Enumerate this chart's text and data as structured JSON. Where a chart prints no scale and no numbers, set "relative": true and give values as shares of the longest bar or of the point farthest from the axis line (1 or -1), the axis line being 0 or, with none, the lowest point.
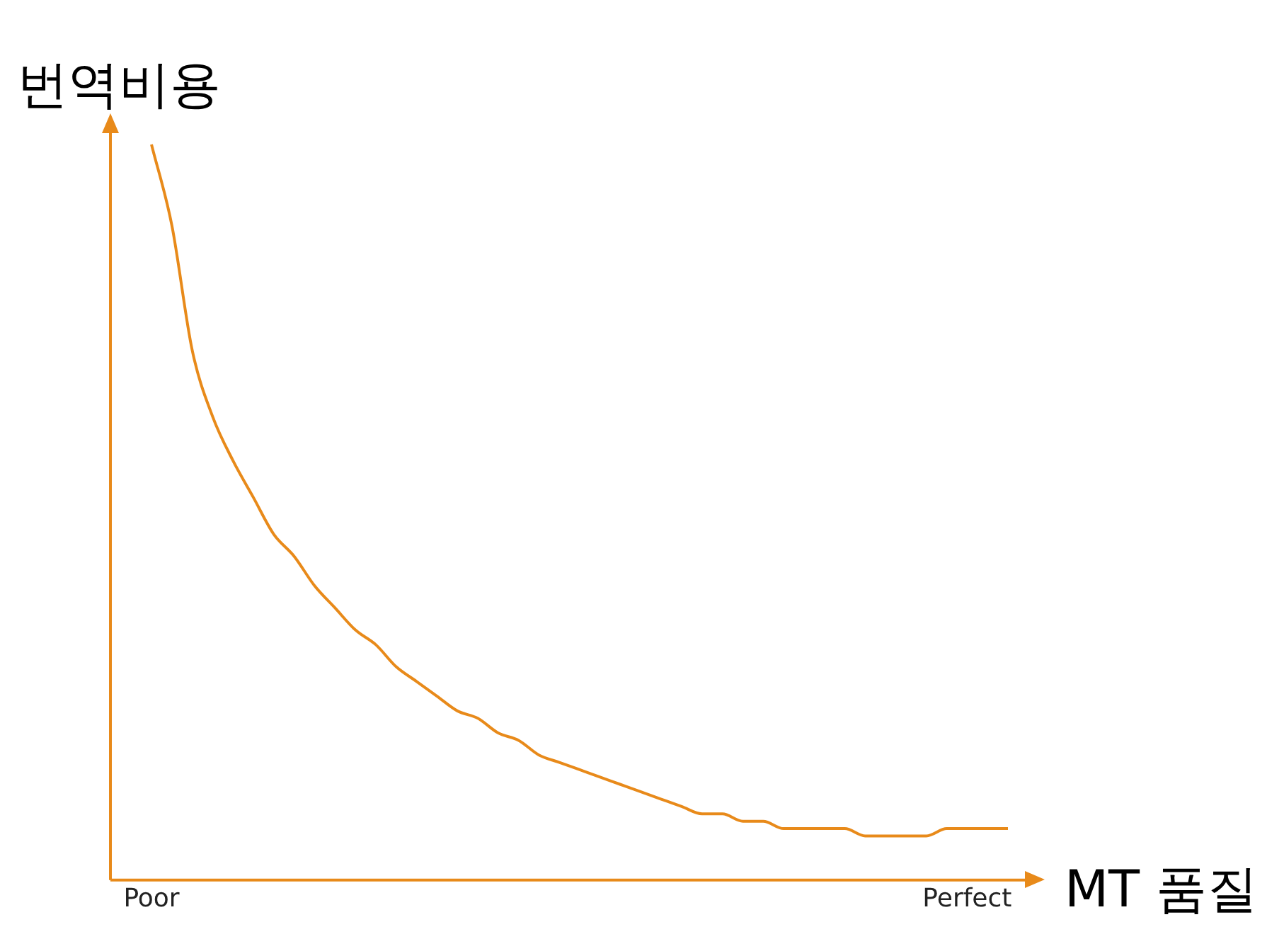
{
  "chart_data": {
    "type": "line",
    "relative": true,
    "xlabel": "MT 품질",
    "ylabel": "번역비용",
    "categories": [
      "Poor",
      null,
      null,
      null,
      null,
      null,
      null,
      null,
      null,
      null,
      null,
      null,
      null,
      null,
      null,
      null,
      null,
      null,
      null,
      null,
      null,
      null,
      null,
      null,
      null,
      null,
      null,
      null,
      null,
      null,
      null,
      null,
      null,
      null,
      null,
      null,
      null,
      null,
      null,
      null,
      "Perfect",
      null,
      null
    ],
    "series": [
      {
        "color": "#e88a1a",
        "values": [
          1.0,
          0.89,
          0.72,
          0.63,
          0.57,
          0.52,
          0.47,
          0.44,
          0.4,
          0.37,
          0.34,
          0.32,
          0.29,
          0.27,
          0.25,
          0.23,
          0.22,
          0.2,
          0.19,
          0.17,
          0.16,
          0.15,
          0.14,
          0.13,
          0.12,
          0.11,
          0.1,
          0.09,
          0.09,
          0.08,
          0.08,
          0.07,
          0.07,
          0.07,
          0.07,
          0.06,
          0.06,
          0.06,
          0.06,
          0.07,
          0.07,
          0.07,
          0.07
        ]
      }
    ],
    "marker": "none",
    "line_style": "solid",
    "grid": false,
    "legend": false,
    "tick_labels": "x"
  }
}
